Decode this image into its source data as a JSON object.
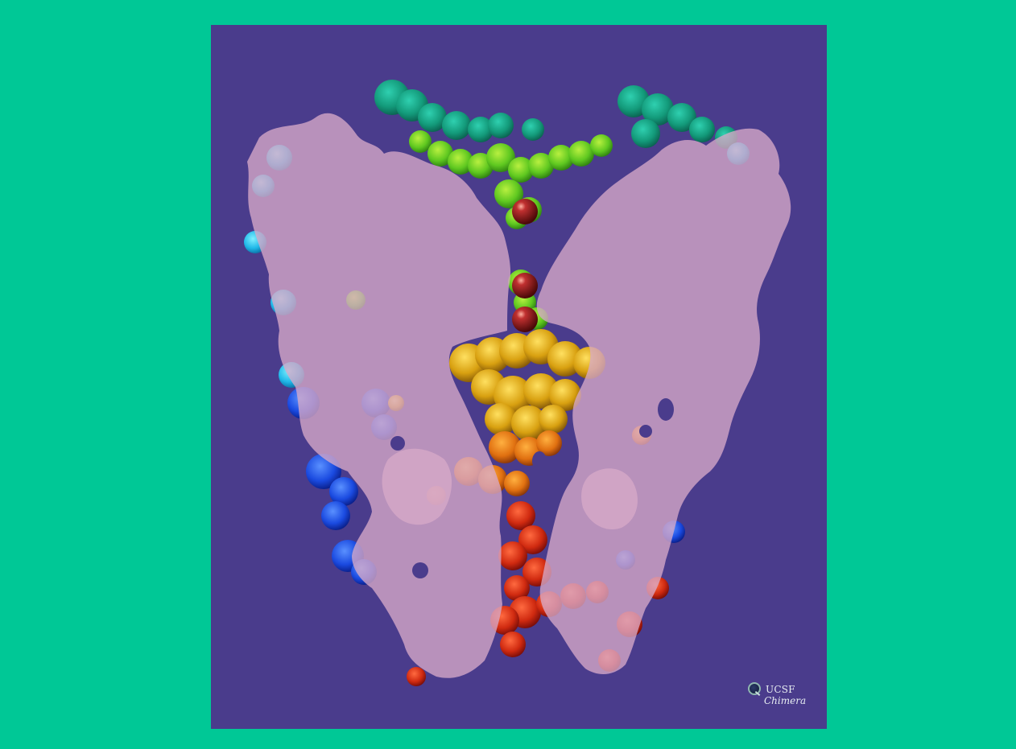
{
  "colors": {
    "page_background": "#00c896",
    "viewer_background": "#4a3c8c",
    "membrane_overlay": "#d7a9c8",
    "ion": "#8b1a1a"
  },
  "molecule": {
    "description_icon": "protein-surface-icon",
    "ions_count": 3
  },
  "logo": {
    "line1": "UCSF",
    "line2": "Chimera",
    "icon": "chimera-logo-icon"
  }
}
